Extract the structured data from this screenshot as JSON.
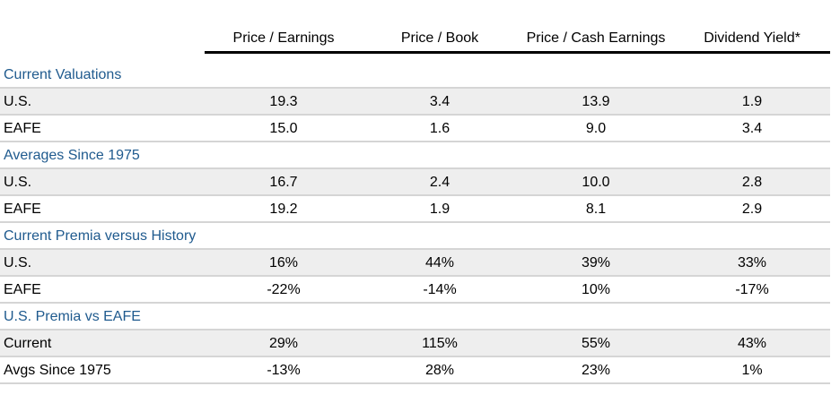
{
  "chart_data": {
    "type": "table",
    "columns": [
      "Price / Earnings",
      "Price / Book",
      "Price / Cash Earnings",
      "Dividend Yield*"
    ],
    "sections": [
      {
        "title": "Current Valuations",
        "rows": [
          {
            "label": "U.S.",
            "values": [
              "19.3",
              "3.4",
              "13.9",
              "1.9"
            ]
          },
          {
            "label": "EAFE",
            "values": [
              "15.0",
              "1.6",
              "9.0",
              "3.4"
            ]
          }
        ]
      },
      {
        "title": "Averages Since 1975",
        "rows": [
          {
            "label": "U.S.",
            "values": [
              "16.7",
              "2.4",
              "10.0",
              "2.8"
            ]
          },
          {
            "label": "EAFE",
            "values": [
              "19.2",
              "1.9",
              "8.1",
              "2.9"
            ]
          }
        ]
      },
      {
        "title": "Current Premia versus History",
        "rows": [
          {
            "label": "U.S.",
            "values": [
              "16%",
              "44%",
              "39%",
              "33%"
            ]
          },
          {
            "label": "EAFE",
            "values": [
              "-22%",
              "-14%",
              "10%",
              "-17%"
            ]
          }
        ]
      },
      {
        "title": "U.S. Premia vs EAFE",
        "rows": [
          {
            "label": "Current",
            "values": [
              "29%",
              "115%",
              "55%",
              "43%"
            ]
          },
          {
            "label": "Avgs Since 1975",
            "values": [
              "-13%",
              "28%",
              "23%",
              "1%"
            ]
          }
        ]
      }
    ]
  },
  "colors": {
    "section_text": "#1f5a8e",
    "row_shade": "#eeeeee",
    "divider": "#d5d5d5",
    "header_rule": "#000000"
  }
}
